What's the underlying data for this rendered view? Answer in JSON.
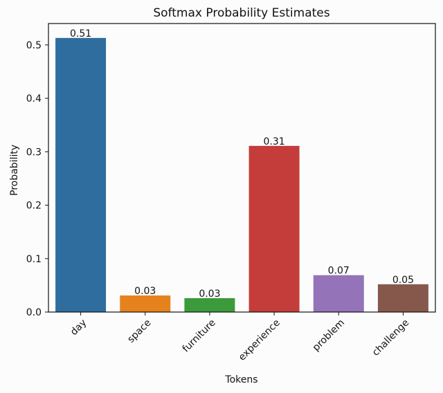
{
  "chart_data": {
    "type": "bar",
    "title": "Softmax Probability Estimates",
    "xlabel": "Tokens",
    "ylabel": "Probability",
    "categories": [
      "day",
      "space",
      "furniture",
      "experience",
      "problem",
      "challenge"
    ],
    "values": [
      0.513,
      0.031,
      0.026,
      0.311,
      0.069,
      0.052
    ],
    "value_labels": [
      "0.51",
      "0.03",
      "0.03",
      "0.31",
      "0.07",
      "0.05"
    ],
    "ylim": [
      0,
      0.54
    ],
    "yticks": [
      0.0,
      0.1,
      0.2,
      0.3,
      0.4,
      0.5
    ],
    "ytick_labels": [
      "0.0",
      "0.1",
      "0.2",
      "0.3",
      "0.4",
      "0.5"
    ],
    "colors": [
      "#2f6d9f",
      "#e6821e",
      "#3b9a3c",
      "#c43d3a",
      "#9473b8",
      "#86584c"
    ],
    "grid": false,
    "legend": "none"
  }
}
